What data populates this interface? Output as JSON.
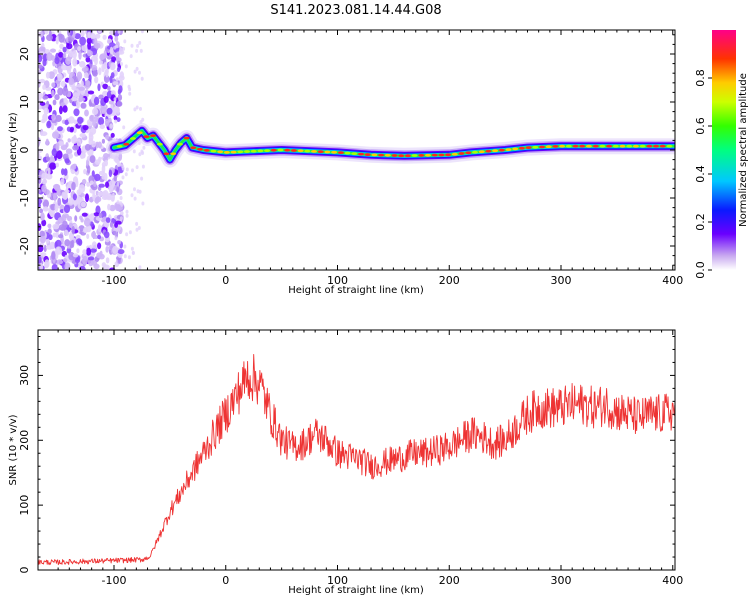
{
  "title": "S141.2023.081.14.44.G08",
  "chart_data": [
    {
      "type": "heatmap",
      "panel": "spectrogram",
      "xlabel": "Height of straight line (km)",
      "ylabel": "Frequency (Hz)",
      "xlim": [
        -168,
        402
      ],
      "ylim": [
        -25,
        25
      ],
      "x_ticks": [
        -100,
        0,
        100,
        200,
        300,
        400
      ],
      "y_ticks": [
        -20,
        -10,
        0,
        10,
        20
      ],
      "noise_region_x": [
        -168,
        -100
      ],
      "ridge": {
        "x": [
          -100,
          -90,
          -80,
          -75,
          -70,
          -65,
          -60,
          -55,
          -50,
          -45,
          -40,
          -35,
          -30,
          -20,
          0,
          50,
          100,
          130,
          160,
          200,
          220,
          250,
          270,
          300,
          350,
          402
        ],
        "y": [
          0.5,
          1,
          3,
          4,
          2.5,
          3,
          1.5,
          0,
          -2,
          0,
          1.5,
          2.5,
          0.5,
          0,
          -0.5,
          0,
          -0.5,
          -1,
          -1.2,
          -1,
          -0.5,
          0,
          0.5,
          0.8,
          0.8,
          0.8
        ]
      },
      "colorbar": {
        "label": "Normalized spectral amplitude",
        "range": [
          0,
          1
        ],
        "ticks": [
          0.0,
          0.2,
          0.4,
          0.6,
          0.8
        ]
      },
      "grid": false
    },
    {
      "type": "line",
      "panel": "snr",
      "xlabel": "Height of straight line (km)",
      "ylabel": "SNR (10 * v/v)",
      "xlim": [
        -168,
        402
      ],
      "ylim": [
        0,
        370
      ],
      "x_ticks": [
        -100,
        0,
        100,
        200,
        300,
        400
      ],
      "y_ticks": [
        0,
        100,
        200,
        300
      ],
      "color": "#ee3333",
      "series": [
        {
          "x": [
            -168,
            -150,
            -130,
            -110,
            -90,
            -75,
            -68,
            -60,
            -50,
            -40,
            -30,
            -20,
            -10,
            0,
            10,
            20,
            30,
            40,
            50,
            60,
            70,
            80,
            90,
            100,
            110,
            120,
            130,
            140,
            150,
            160,
            170,
            180,
            190,
            200,
            210,
            220,
            230,
            240,
            250,
            260,
            270,
            280,
            290,
            300,
            310,
            320,
            330,
            340,
            350,
            360,
            370,
            380,
            390,
            402
          ],
          "y": [
            12,
            12,
            13,
            14,
            15,
            16,
            20,
            50,
            90,
            120,
            150,
            180,
            210,
            240,
            270,
            300,
            290,
            240,
            200,
            190,
            195,
            210,
            200,
            180,
            175,
            170,
            160,
            165,
            170,
            175,
            180,
            180,
            185,
            190,
            200,
            210,
            205,
            195,
            200,
            220,
            240,
            250,
            250,
            250,
            255,
            255,
            250,
            255,
            245,
            240,
            235,
            240,
            240,
            245
          ]
        }
      ],
      "grid": false
    }
  ]
}
